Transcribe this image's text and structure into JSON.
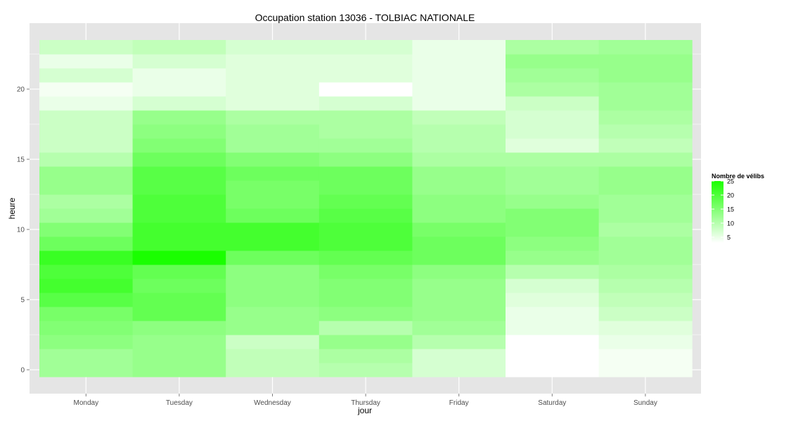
{
  "chart_data": {
    "type": "heatmap",
    "title": "Occupation station 13036 - TOLBIAC NATIONALE",
    "xlabel": "jour",
    "ylabel": "heure",
    "categories": [
      "Monday",
      "Tuesday",
      "Wednesday",
      "Thursday",
      "Friday",
      "Saturday",
      "Sunday"
    ],
    "hours": [
      0,
      1,
      2,
      3,
      4,
      5,
      6,
      7,
      8,
      9,
      10,
      11,
      12,
      13,
      14,
      15,
      16,
      17,
      18,
      19,
      20,
      21,
      22,
      23
    ],
    "y_ticks": [
      0,
      5,
      10,
      15,
      20
    ],
    "ylim": [
      -0.5,
      23.5
    ],
    "values": [
      [
        12,
        13,
        9,
        10,
        7,
        3,
        4
      ],
      [
        12,
        13,
        9,
        11,
        7,
        3,
        4
      ],
      [
        14,
        13,
        8,
        13,
        10,
        3,
        5
      ],
      [
        15,
        14,
        13,
        10,
        12,
        5,
        6
      ],
      [
        16,
        18,
        13,
        14,
        13,
        5,
        8
      ],
      [
        19,
        18,
        14,
        15,
        13,
        6,
        9
      ],
      [
        21,
        17,
        14,
        15,
        13,
        7,
        10
      ],
      [
        20,
        18,
        14,
        16,
        14,
        10,
        11
      ],
      [
        22,
        25,
        17,
        18,
        17,
        13,
        12
      ],
      [
        17,
        21,
        21,
        20,
        17,
        14,
        12
      ],
      [
        15,
        21,
        21,
        20,
        16,
        15,
        11
      ],
      [
        12,
        20,
        17,
        19,
        14,
        15,
        12
      ],
      [
        11,
        20,
        16,
        18,
        14,
        13,
        12
      ],
      [
        13,
        19,
        16,
        17,
        13,
        12,
        13
      ],
      [
        13,
        19,
        17,
        17,
        13,
        12,
        13
      ],
      [
        10,
        17,
        15,
        14,
        11,
        11,
        11
      ],
      [
        8,
        15,
        12,
        12,
        10,
        6,
        9
      ],
      [
        8,
        14,
        12,
        11,
        10,
        7,
        10
      ],
      [
        8,
        13,
        11,
        11,
        9,
        7,
        11
      ],
      [
        5,
        7,
        6,
        7,
        5,
        8,
        12
      ],
      [
        4,
        5,
        6,
        3,
        5,
        11,
        12
      ],
      [
        7,
        5,
        6,
        6,
        5,
        12,
        13
      ],
      [
        5,
        7,
        6,
        6,
        5,
        13,
        13
      ],
      [
        8,
        9,
        7,
        7,
        5,
        11,
        12
      ]
    ],
    "legend": {
      "title": "Nombre de vélibs",
      "breaks": [
        5,
        10,
        15,
        20,
        25
      ],
      "range": [
        3,
        25
      ],
      "low_color": "#ffffff",
      "high_color": "#1aff00",
      "placement": "right"
    },
    "panel_background": "#e5e5e5",
    "grid_color": "#ffffff",
    "grid": true
  }
}
